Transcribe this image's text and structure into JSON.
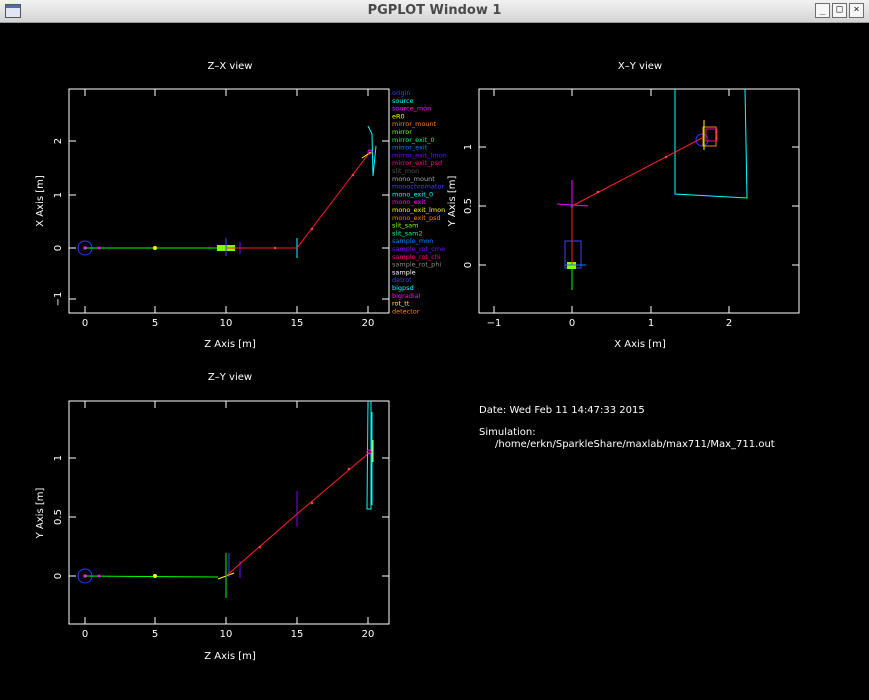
{
  "window": {
    "title": "PGPLOT Window 1",
    "min_glyph": "_",
    "max_glyph": "□",
    "close_glyph": "×"
  },
  "panels": {
    "zx": {
      "title": "Z–X view",
      "xlabel": "Z Axis [m]",
      "ylabel": "X Axis [m]",
      "xticks": [
        "0",
        "5",
        "10",
        "15",
        "20"
      ],
      "yticks": [
        "−1",
        "0",
        "1",
        "2"
      ]
    },
    "xy": {
      "title": "X–Y view",
      "xlabel": "X Axis [m]",
      "ylabel": "Y Axis [m]",
      "xticks": [
        "−1",
        "0",
        "1",
        "2"
      ],
      "yticks": [
        "0",
        "0.5",
        "1"
      ]
    },
    "zy": {
      "title": "Z–Y view",
      "xlabel": "Z Axis [m]",
      "ylabel": "Y Axis [m]",
      "xticks": [
        "0",
        "5",
        "10",
        "15",
        "20"
      ],
      "yticks": [
        "0",
        "0.5",
        "1"
      ]
    }
  },
  "legend": [
    {
      "label": "origin",
      "color": "#4040ff"
    },
    {
      "label": "source",
      "color": "#00ffff"
    },
    {
      "label": "source_mon",
      "color": "#ff00ff"
    },
    {
      "label": "eR0",
      "color": "#ffff00"
    },
    {
      "label": "mirror_mount",
      "color": "#ff8000"
    },
    {
      "label": "mirror",
      "color": "#80ff00"
    },
    {
      "label": "mirror_exit_0",
      "color": "#00ff80"
    },
    {
      "label": "mirror_exit",
      "color": "#0080ff"
    },
    {
      "label": "mirror_exit_lmon",
      "color": "#8000ff"
    },
    {
      "label": "mirror_exit_psd",
      "color": "#ff0080"
    },
    {
      "label": "slit_mon",
      "color": "#555555"
    },
    {
      "label": "mono_mount",
      "color": "#aaaaaa"
    },
    {
      "label": "monochromator",
      "color": "#4040ff"
    },
    {
      "label": "mono_exit_0",
      "color": "#00ffff"
    },
    {
      "label": "mono_exit",
      "color": "#ff00ff"
    },
    {
      "label": "mono_exit_lmon",
      "color": "#ffff00"
    },
    {
      "label": "mono_exit_psd",
      "color": "#ff8000"
    },
    {
      "label": "slit_sam",
      "color": "#80ff00"
    },
    {
      "label": "slit_sam2",
      "color": "#00ff80"
    },
    {
      "label": "sample_mon",
      "color": "#0080ff"
    },
    {
      "label": "sample_rot_cme",
      "color": "#8000ff"
    },
    {
      "label": "sample_rot_chi",
      "color": "#ff0080"
    },
    {
      "label": "sample_rot_phi",
      "color": "#888888"
    },
    {
      "label": "sample",
      "color": "#ffffff"
    },
    {
      "label": "detrot",
      "color": "#4040ff"
    },
    {
      "label": "bigpsd",
      "color": "#00ffff"
    },
    {
      "label": "bigradial",
      "color": "#ff00ff"
    },
    {
      "label": "rot_tt",
      "color": "#ffff00"
    },
    {
      "label": "detector",
      "color": "#ff8000"
    }
  ],
  "info": {
    "date": "Date: Wed Feb 11 14:47:33 2015",
    "sim_label": "Simulation:",
    "sim_path": "/home/erkn/SparkleShare/maxlab/max711/Max_711.out"
  },
  "colors": {
    "frame": "#ffffff",
    "ray": "#ff2020",
    "guide": "#00ff00",
    "origin": "#3333ff"
  }
}
